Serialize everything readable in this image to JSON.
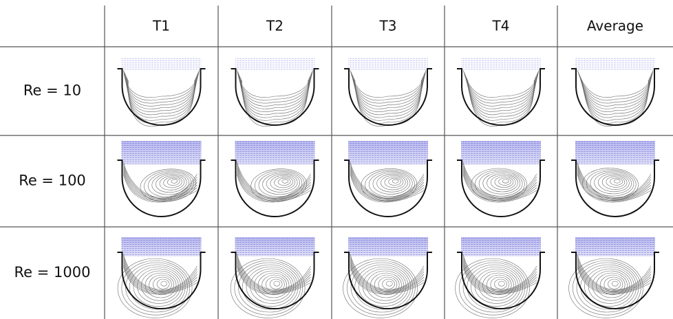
{
  "table": {
    "columns": [
      "T1",
      "T2",
      "T3",
      "T4",
      "Average"
    ],
    "rows": [
      "Re = 10",
      "Re = 100",
      "Re = 1000"
    ]
  }
}
